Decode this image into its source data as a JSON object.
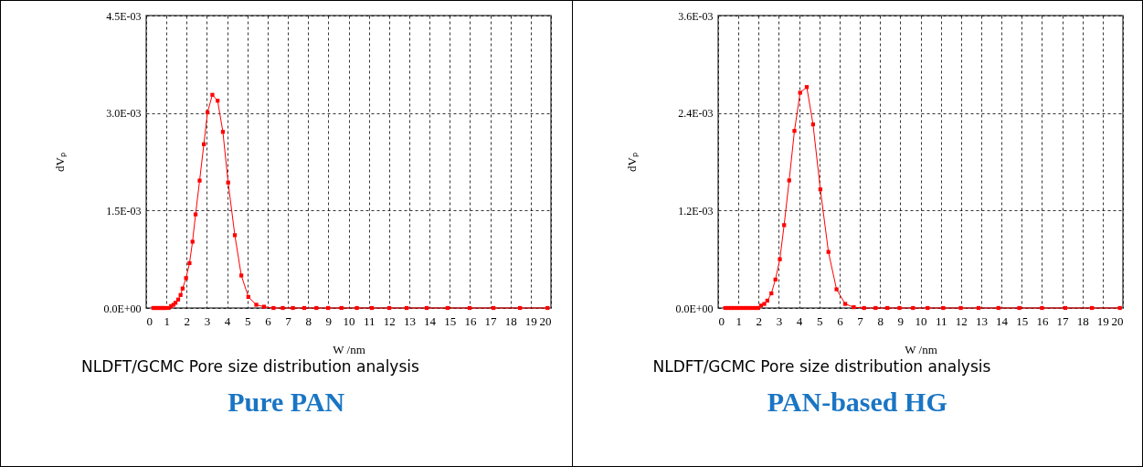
{
  "chart_data": [
    {
      "type": "line",
      "title": "Pure PAN",
      "xlabel": "W /nm",
      "ylabel": "dVₚ",
      "annotations": [
        "NLDFT/GCMC Pore size distribution analysis"
      ],
      "marker": "square",
      "grid": true,
      "xlim": [
        0,
        20
      ],
      "xticks": [
        0,
        1,
        2,
        3,
        4,
        5,
        6,
        7,
        8,
        9,
        10,
        11,
        12,
        13,
        14,
        15,
        16,
        17,
        18,
        19,
        20
      ],
      "ylim": [
        0,
        0.0045
      ],
      "yticks": [
        {
          "value": 0,
          "label": "0.0E+00"
        },
        {
          "value": 0.0015,
          "label": "1.5E-03"
        },
        {
          "value": 0.003,
          "label": "3.0E-03"
        },
        {
          "value": 0.0045,
          "label": "4.5E-03"
        }
      ],
      "series": [
        {
          "color": "#ff0000",
          "x": [
            0.35,
            0.45,
            0.55,
            0.65,
            0.75,
            0.85,
            0.95,
            1.11,
            1.23,
            1.35,
            1.45,
            1.58,
            1.7,
            1.8,
            1.97,
            2.14,
            2.29,
            2.44,
            2.64,
            2.85,
            3.03,
            3.27,
            3.53,
            3.79,
            4.05,
            4.38,
            4.7,
            5.05,
            5.44,
            5.82,
            6.29,
            6.75,
            7.25,
            7.81,
            8.41,
            8.99,
            9.65,
            10.41,
            11.15,
            12.01,
            12.87,
            13.86,
            14.89,
            15.98,
            17.16,
            18.47,
            19.83
          ],
          "values": [
            0,
            0,
            0,
            0,
            0,
            0,
            0,
            0,
            3e-05,
            5e-05,
            8e-05,
            0.00013,
            0.0002,
            0.0003,
            0.00046,
            0.00069,
            0.00102,
            0.00144,
            0.00196,
            0.00252,
            0.00301,
            0.00328,
            0.00319,
            0.00271,
            0.00193,
            0.00112,
            0.0005,
            0.00017,
            5e-05,
            2e-05,
            0,
            0,
            0,
            0,
            0,
            0,
            0,
            0,
            0,
            0,
            0,
            0,
            0,
            0,
            0,
            0,
            0
          ]
        }
      ]
    },
    {
      "type": "line",
      "title": "PAN-based HG",
      "xlabel": "W /nm",
      "ylabel": "dVₚ",
      "annotations": [
        "NLDFT/GCMC Pore size distribution analysis"
      ],
      "marker": "square",
      "grid": true,
      "xlim": [
        0,
        20
      ],
      "xticks": [
        0,
        1,
        2,
        3,
        4,
        5,
        6,
        7,
        8,
        9,
        10,
        11,
        12,
        13,
        14,
        15,
        16,
        17,
        18,
        19,
        20
      ],
      "ylim": [
        0,
        0.0036
      ],
      "yticks": [
        {
          "value": 0,
          "label": "0.0E+00"
        },
        {
          "value": 0.0012,
          "label": "1.2E-03"
        },
        {
          "value": 0.0024,
          "label": "2.4E-03"
        },
        {
          "value": 0.0036,
          "label": "3.6E-03"
        }
      ],
      "series": [
        {
          "color": "#ff0000",
          "x": [
            0.35,
            0.5,
            0.65,
            0.8,
            0.95,
            1.1,
            1.25,
            1.4,
            1.55,
            1.7,
            1.85,
            1.98,
            2.12,
            2.28,
            2.43,
            2.63,
            2.83,
            3.05,
            3.26,
            3.51,
            3.77,
            4.05,
            4.38,
            4.69,
            5.05,
            5.45,
            5.85,
            6.28,
            6.7,
            7.21,
            7.78,
            8.36,
            8.96,
            9.63,
            10.35,
            11.12,
            11.99,
            12.87,
            13.85,
            14.88,
            16.0,
            17.15,
            18.47,
            19.85
          ],
          "values": [
            0,
            0,
            0,
            0,
            0,
            0,
            0,
            0,
            0,
            0,
            0,
            0,
            3e-05,
            5e-05,
            9e-05,
            0.00018,
            0.00035,
            0.0006,
            0.00102,
            0.00157,
            0.00218,
            0.00265,
            0.00272,
            0.00226,
            0.00146,
            0.00069,
            0.00023,
            5e-05,
            1e-05,
            0,
            0,
            0,
            0,
            0,
            0,
            0,
            0,
            0,
            0,
            0,
            0,
            0,
            0,
            0
          ]
        }
      ]
    }
  ]
}
